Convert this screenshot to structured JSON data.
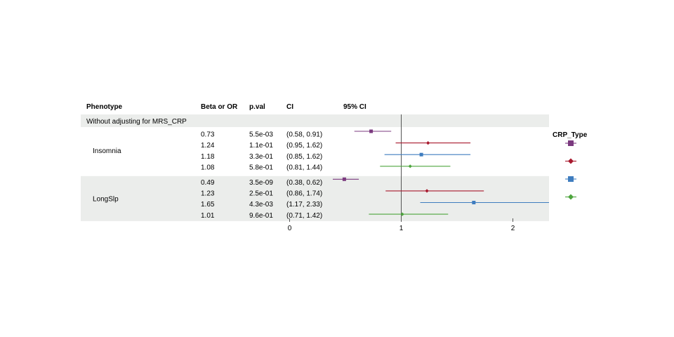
{
  "headers": {
    "phenotype": "Phenotype",
    "beta": "Beta or OR",
    "pval": "p.val",
    "ci": "CI",
    "plot": "95% CI"
  },
  "section_label": "Without adjusting for MRS_CRP",
  "legend": {
    "title": "CRP_Type",
    "entries": [
      {
        "shape": "square",
        "color": "#7B3A7F"
      },
      {
        "shape": "diamond",
        "color": "#A8192E"
      },
      {
        "shape": "square",
        "color": "#3F7DBF"
      },
      {
        "shape": "diamond",
        "color": "#4EA53E"
      }
    ]
  },
  "colors": {
    "band": "#EBEDEB",
    "ref_line": "#555555",
    "purple": "#7B3A7F",
    "red": "#A8192E",
    "blue": "#3F7DBF",
    "green": "#4EA53E"
  },
  "chart_data": {
    "type": "forest",
    "xlim": [
      0.4,
      2.33
    ],
    "xticks": [
      "0",
      "1",
      "2"
    ],
    "ref_line": 1,
    "groups": [
      {
        "phenotype": "Insomnia",
        "rows": [
          {
            "beta": "0.73",
            "pval": "5.5e-03",
            "ci": "(0.58, 0.91)",
            "est": 0.73,
            "lo": 0.58,
            "hi": 0.91,
            "color": "#7B3A7F",
            "shape": "square"
          },
          {
            "beta": "1.24",
            "pval": "1.1e-01",
            "ci": "(0.95, 1.62)",
            "est": 1.24,
            "lo": 0.95,
            "hi": 1.62,
            "color": "#A8192E",
            "shape": "diamond"
          },
          {
            "beta": "1.18",
            "pval": "3.3e-01",
            "ci": "(0.85, 1.62)",
            "est": 1.18,
            "lo": 0.85,
            "hi": 1.62,
            "color": "#3F7DBF",
            "shape": "square"
          },
          {
            "beta": "1.08",
            "pval": "5.8e-01",
            "ci": "(0.81, 1.44)",
            "est": 1.08,
            "lo": 0.81,
            "hi": 1.44,
            "color": "#4EA53E",
            "shape": "diamond"
          }
        ]
      },
      {
        "phenotype": "LongSlp",
        "rows": [
          {
            "beta": "0.49",
            "pval": "3.5e-09",
            "ci": "(0.38, 0.62)",
            "est": 0.49,
            "lo": 0.38,
            "hi": 0.62,
            "color": "#7B3A7F",
            "shape": "square"
          },
          {
            "beta": "1.23",
            "pval": "2.5e-01",
            "ci": "(0.86, 1.74)",
            "est": 1.23,
            "lo": 0.86,
            "hi": 1.74,
            "color": "#A8192E",
            "shape": "diamond"
          },
          {
            "beta": "1.65",
            "pval": "4.3e-03",
            "ci": "(1.17, 2.33)",
            "est": 1.65,
            "lo": 1.17,
            "hi": 2.33,
            "color": "#3F7DBF",
            "shape": "square"
          },
          {
            "beta": "1.01",
            "pval": "9.6e-01",
            "ci": "(0.71, 1.42)",
            "est": 1.01,
            "lo": 0.71,
            "hi": 1.42,
            "color": "#4EA53E",
            "shape": "diamond"
          }
        ]
      }
    ]
  }
}
